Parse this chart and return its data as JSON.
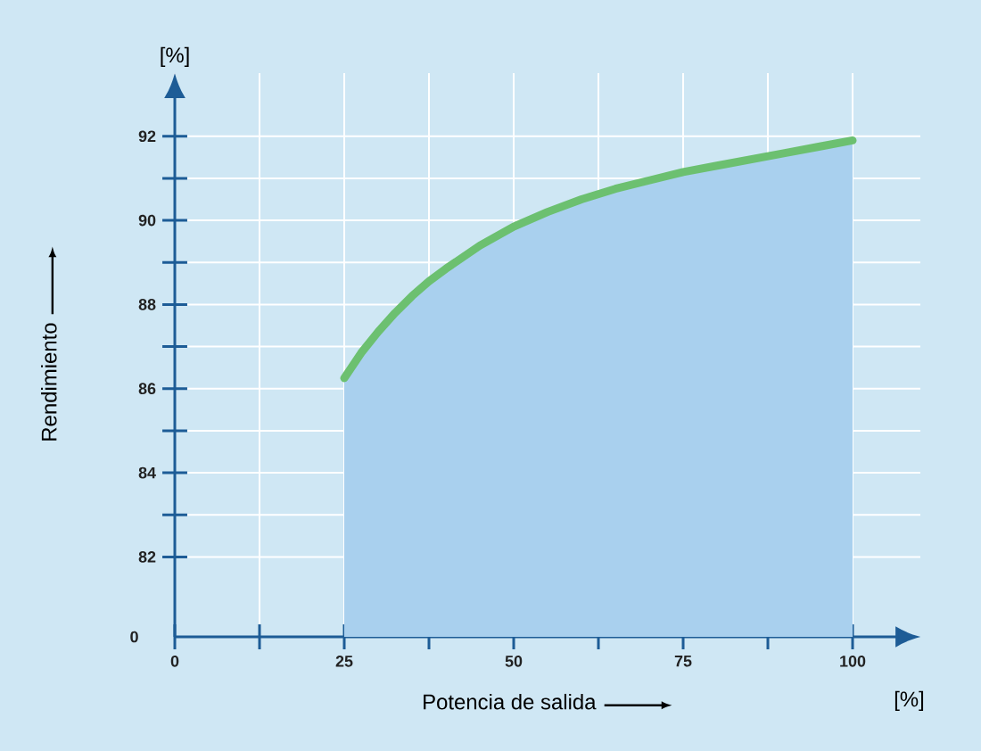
{
  "chart_data": {
    "type": "area",
    "xlabel": "Potencia de salida",
    "ylabel": "Rendimiento",
    "annotations": [
      "[%]",
      "[%]",
      "0"
    ],
    "xlim": [
      0,
      110
    ],
    "ylim": [
      80.1,
      93.5
    ],
    "xticks": [
      0,
      {
        "value": 12.5,
        "label": null
      },
      25,
      {
        "value": 37.5,
        "label": null
      },
      50,
      {
        "value": 62.5,
        "label": null
      },
      75,
      {
        "value": 87.5,
        "label": null
      },
      100
    ],
    "yticks": [
      82,
      {
        "value": 83,
        "label": null
      },
      84,
      {
        "value": 85,
        "label": null
      },
      86,
      {
        "value": 87,
        "label": null
      },
      88,
      {
        "value": 89,
        "label": null
      },
      90,
      {
        "value": 91,
        "label": null
      },
      92
    ],
    "grid": true,
    "series": [
      {
        "color": "#a9d0ee",
        "x": [
          25,
          27.5,
          30,
          32.5,
          35,
          37.5,
          40,
          45,
          50,
          55,
          60,
          65,
          70,
          75,
          80,
          85,
          90,
          95,
          100
        ],
        "values": [
          86.25,
          86.85,
          87.35,
          87.8,
          88.2,
          88.55,
          88.85,
          89.4,
          89.85,
          90.2,
          90.5,
          90.75,
          90.95,
          91.15,
          91.3,
          91.45,
          91.6,
          91.75,
          91.9
        ]
      },
      {
        "type": "line",
        "color": "#6cc070",
        "x": [
          25,
          27.5,
          30,
          32.5,
          35,
          37.5,
          40,
          45,
          50,
          55,
          60,
          65,
          70,
          75,
          80,
          85,
          90,
          95,
          100
        ],
        "values": [
          86.25,
          86.85,
          87.35,
          87.8,
          88.2,
          88.55,
          88.85,
          89.4,
          89.85,
          90.2,
          90.5,
          90.75,
          90.95,
          91.15,
          91.3,
          91.45,
          91.6,
          91.75,
          91.9
        ]
      }
    ]
  }
}
